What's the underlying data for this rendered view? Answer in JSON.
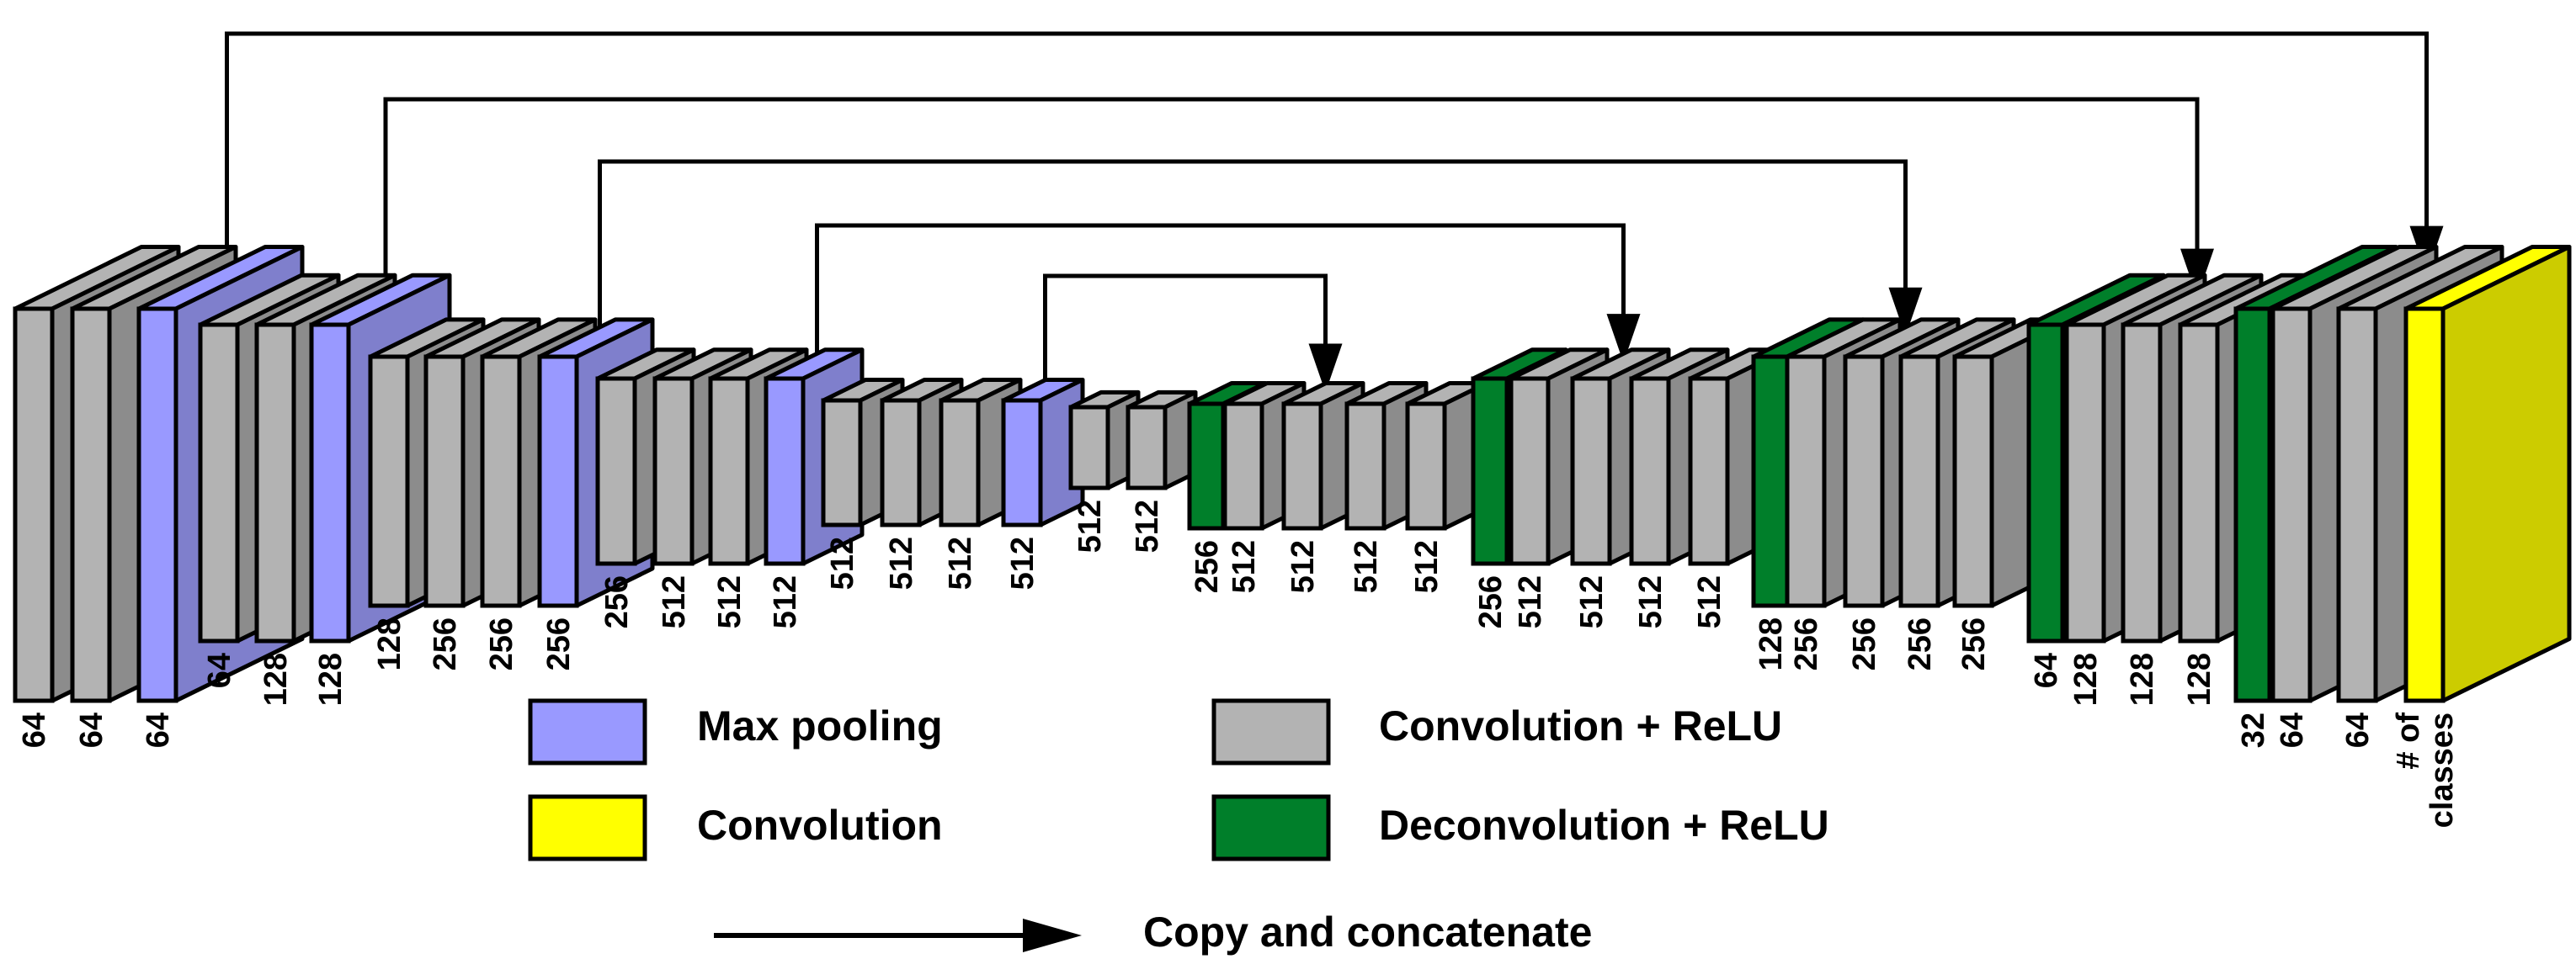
{
  "colors": {
    "conv_relu": "#b3b3b3",
    "conv_relu_side": "#8c8c8c",
    "max_pooling": "#9999ff",
    "max_pooling_side": "#7f7fcc",
    "deconv_relu": "#007f2a",
    "deconv_relu_side": "#2e9e4f",
    "convolution": "#ffff00",
    "convolution_side": "#cccc00",
    "outline": "#000000"
  },
  "legend": {
    "max_pooling": "Max pooling",
    "convolution": "Convolution",
    "conv_relu": "Convolution + ReLU",
    "deconv_relu": "Deconvolution + ReLU",
    "copy_concat": "Copy and concatenate"
  },
  "layers": [
    {
      "type": "conv_relu",
      "label": "64"
    },
    {
      "type": "conv_relu",
      "label": "64"
    },
    {
      "type": "max_pooling",
      "label": "64"
    },
    {
      "type": "conv_relu",
      "label": "64"
    },
    {
      "type": "conv_relu",
      "label": "128"
    },
    {
      "type": "max_pooling",
      "label": "128"
    },
    {
      "type": "conv_relu",
      "label": "128"
    },
    {
      "type": "conv_relu",
      "label": "256"
    },
    {
      "type": "conv_relu",
      "label": "256"
    },
    {
      "type": "max_pooling",
      "label": "256"
    },
    {
      "type": "conv_relu",
      "label": "256"
    },
    {
      "type": "conv_relu",
      "label": "512"
    },
    {
      "type": "conv_relu",
      "label": "512"
    },
    {
      "type": "max_pooling",
      "label": "512"
    },
    {
      "type": "conv_relu",
      "label": "512"
    },
    {
      "type": "conv_relu",
      "label": "512"
    },
    {
      "type": "conv_relu",
      "label": "512"
    },
    {
      "type": "max_pooling",
      "label": "512"
    },
    {
      "type": "conv_relu",
      "label": "512"
    },
    {
      "type": "conv_relu",
      "label": "512"
    },
    {
      "type": "deconv_relu",
      "label": "256"
    },
    {
      "type": "conv_relu",
      "label": "512"
    },
    {
      "type": "conv_relu",
      "label": "512"
    },
    {
      "type": "conv_relu",
      "label": "512"
    },
    {
      "type": "conv_relu",
      "label": "512"
    },
    {
      "type": "deconv_relu",
      "label": "256"
    },
    {
      "type": "conv_relu",
      "label": "512"
    },
    {
      "type": "conv_relu",
      "label": "512"
    },
    {
      "type": "conv_relu",
      "label": "512"
    },
    {
      "type": "conv_relu",
      "label": "512"
    },
    {
      "type": "deconv_relu",
      "label": "128"
    },
    {
      "type": "conv_relu",
      "label": "256"
    },
    {
      "type": "conv_relu",
      "label": "256"
    },
    {
      "type": "conv_relu",
      "label": "256"
    },
    {
      "type": "conv_relu",
      "label": "256"
    },
    {
      "type": "deconv_relu",
      "label": "64"
    },
    {
      "type": "conv_relu",
      "label": "128"
    },
    {
      "type": "conv_relu",
      "label": "128"
    },
    {
      "type": "conv_relu",
      "label": "128"
    },
    {
      "type": "deconv_relu",
      "label": "32"
    },
    {
      "type": "conv_relu",
      "label": "64"
    },
    {
      "type": "conv_relu",
      "label": "64"
    },
    {
      "type": "convolution",
      "label": "# of\nclasses"
    }
  ],
  "skip_connections": [
    {
      "from_layer": 2,
      "to_layer": 41
    },
    {
      "from_layer": 5,
      "to_layer": 37
    },
    {
      "from_layer": 9,
      "to_layer": 32
    },
    {
      "from_layer": 13,
      "to_layer": 27
    },
    {
      "from_layer": 17,
      "to_layer": 22
    }
  ]
}
